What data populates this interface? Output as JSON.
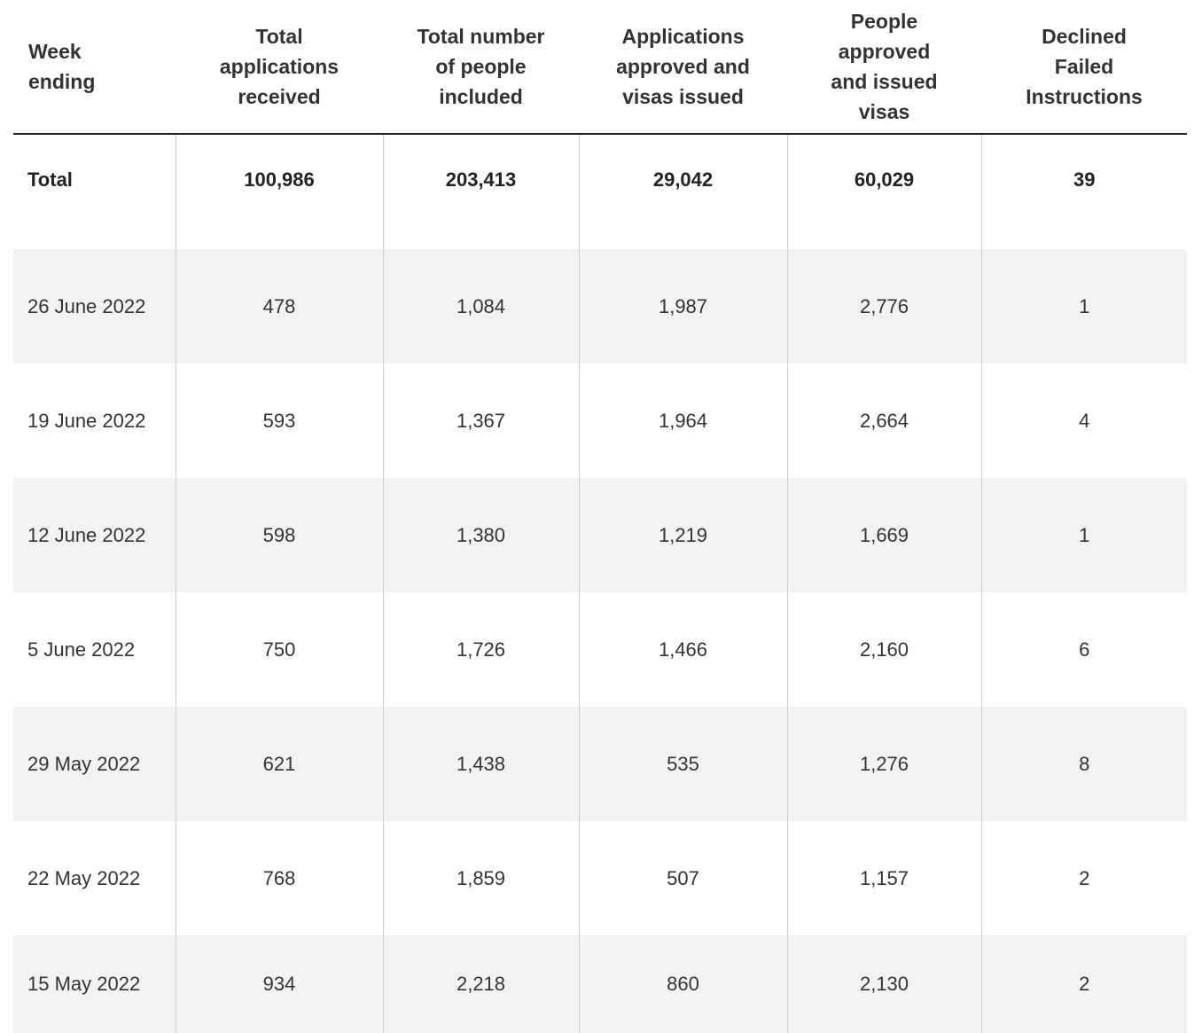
{
  "table": {
    "headers": [
      [
        "Week",
        "ending"
      ],
      [
        "Total",
        "applications",
        "received"
      ],
      [
        "Total number",
        "of people",
        "included"
      ],
      [
        "Applications",
        "approved and",
        "visas issued"
      ],
      [
        "People",
        "approved",
        "and issued",
        "visas"
      ],
      [
        "Declined",
        "Failed",
        "Instructions"
      ]
    ],
    "total_row": [
      "Total",
      "100,986",
      "203,413",
      "29,042",
      "60,029",
      "39"
    ],
    "rows": [
      [
        "26 June 2022",
        "478",
        "1,084",
        "1,987",
        "2,776",
        "1"
      ],
      [
        "19 June 2022",
        "593",
        "1,367",
        "1,964",
        "2,664",
        "4"
      ],
      [
        "12 June 2022",
        "598",
        "1,380",
        "1,219",
        "1,669",
        "1"
      ],
      [
        "5 June 2022",
        "750",
        "1,726",
        "1,466",
        "2,160",
        "6"
      ],
      [
        "29 May 2022",
        "621",
        "1,438",
        "535",
        "1,276",
        "8"
      ],
      [
        "22 May 2022",
        "768",
        "1,859",
        "507",
        "1,157",
        "2"
      ],
      [
        "15 May 2022",
        "934",
        "2,218",
        "860",
        "2,130",
        "2"
      ]
    ]
  },
  "colors": {
    "text": "#333333",
    "header_rule": "#222222",
    "column_divider": "#cfcfcf",
    "alt_row_bg": "#f2f2f2"
  }
}
